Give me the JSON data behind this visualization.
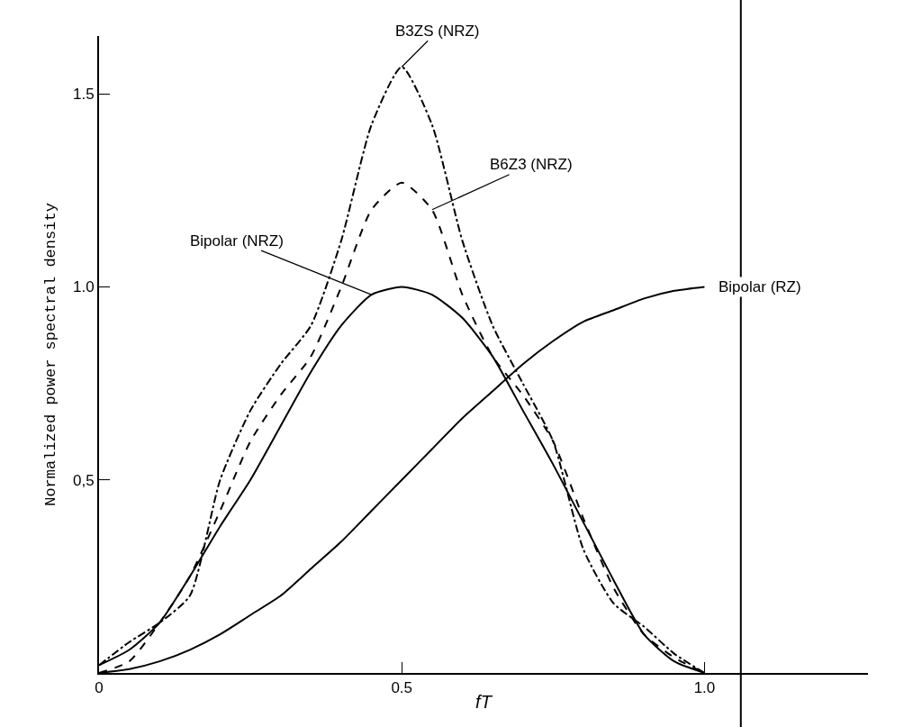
{
  "chart_data": {
    "type": "line",
    "xlabel": "fT",
    "ylabel": "Normalized power spectral density",
    "x": [
      0,
      0.05,
      0.1,
      0.15,
      0.2,
      0.25,
      0.3,
      0.35,
      0.4,
      0.45,
      0.5,
      0.55,
      0.6,
      0.65,
      0.7,
      0.75,
      0.8,
      0.85,
      0.9,
      0.95,
      1.0
    ],
    "series": [
      {
        "name": "B3ZS (NRZ)",
        "color": "#000000",
        "line_style": "dashdot",
        "values": [
          0.02,
          0.08,
          0.13,
          0.2,
          0.5,
          0.68,
          0.8,
          0.9,
          1.12,
          1.42,
          1.57,
          1.42,
          1.12,
          0.9,
          0.75,
          0.6,
          0.32,
          0.18,
          0.12,
          0.05,
          0
        ]
      },
      {
        "name": "B6Z3 (NRZ)",
        "color": "#000000",
        "line_style": "dashed",
        "values": [
          0,
          0.03,
          0.13,
          0.25,
          0.42,
          0.6,
          0.72,
          0.82,
          1.0,
          1.2,
          1.27,
          1.2,
          0.98,
          0.82,
          0.72,
          0.6,
          0.4,
          0.22,
          0.1,
          0.04,
          0
        ]
      },
      {
        "name": "Bipolar (NRZ)",
        "color": "#000000",
        "line_style": "solid",
        "values": [
          0.02,
          0.06,
          0.13,
          0.25,
          0.38,
          0.5,
          0.64,
          0.78,
          0.9,
          0.98,
          1.0,
          0.98,
          0.92,
          0.82,
          0.68,
          0.54,
          0.39,
          0.24,
          0.1,
          0.03,
          0
        ]
      },
      {
        "name": "Bipolar (RZ)",
        "color": "#000000",
        "line_style": "solid",
        "values": [
          0,
          0.01,
          0.03,
          0.06,
          0.1,
          0.15,
          0.2,
          0.27,
          0.34,
          0.42,
          0.5,
          0.58,
          0.66,
          0.73,
          0.8,
          0.86,
          0.91,
          0.94,
          0.97,
          0.99,
          1.0
        ]
      }
    ],
    "xlim": [
      0,
      1.27
    ],
    "ylim": [
      0,
      1.65
    ],
    "xticks": [
      {
        "value": 0,
        "label": "0"
      },
      {
        "value": 0.5,
        "label": "0.5"
      },
      {
        "value": 1.0,
        "label": "1.0"
      }
    ],
    "yticks": [
      {
        "value": 0.5,
        "label": "0,5"
      },
      {
        "value": 1.0,
        "label": "1.0"
      },
      {
        "value": 1.5,
        "label": "1.5"
      }
    ],
    "ref_lines": [
      {
        "axis": "x",
        "value": 1.06,
        "color": "#000000",
        "line_style": "solid"
      }
    ],
    "legend": false
  }
}
